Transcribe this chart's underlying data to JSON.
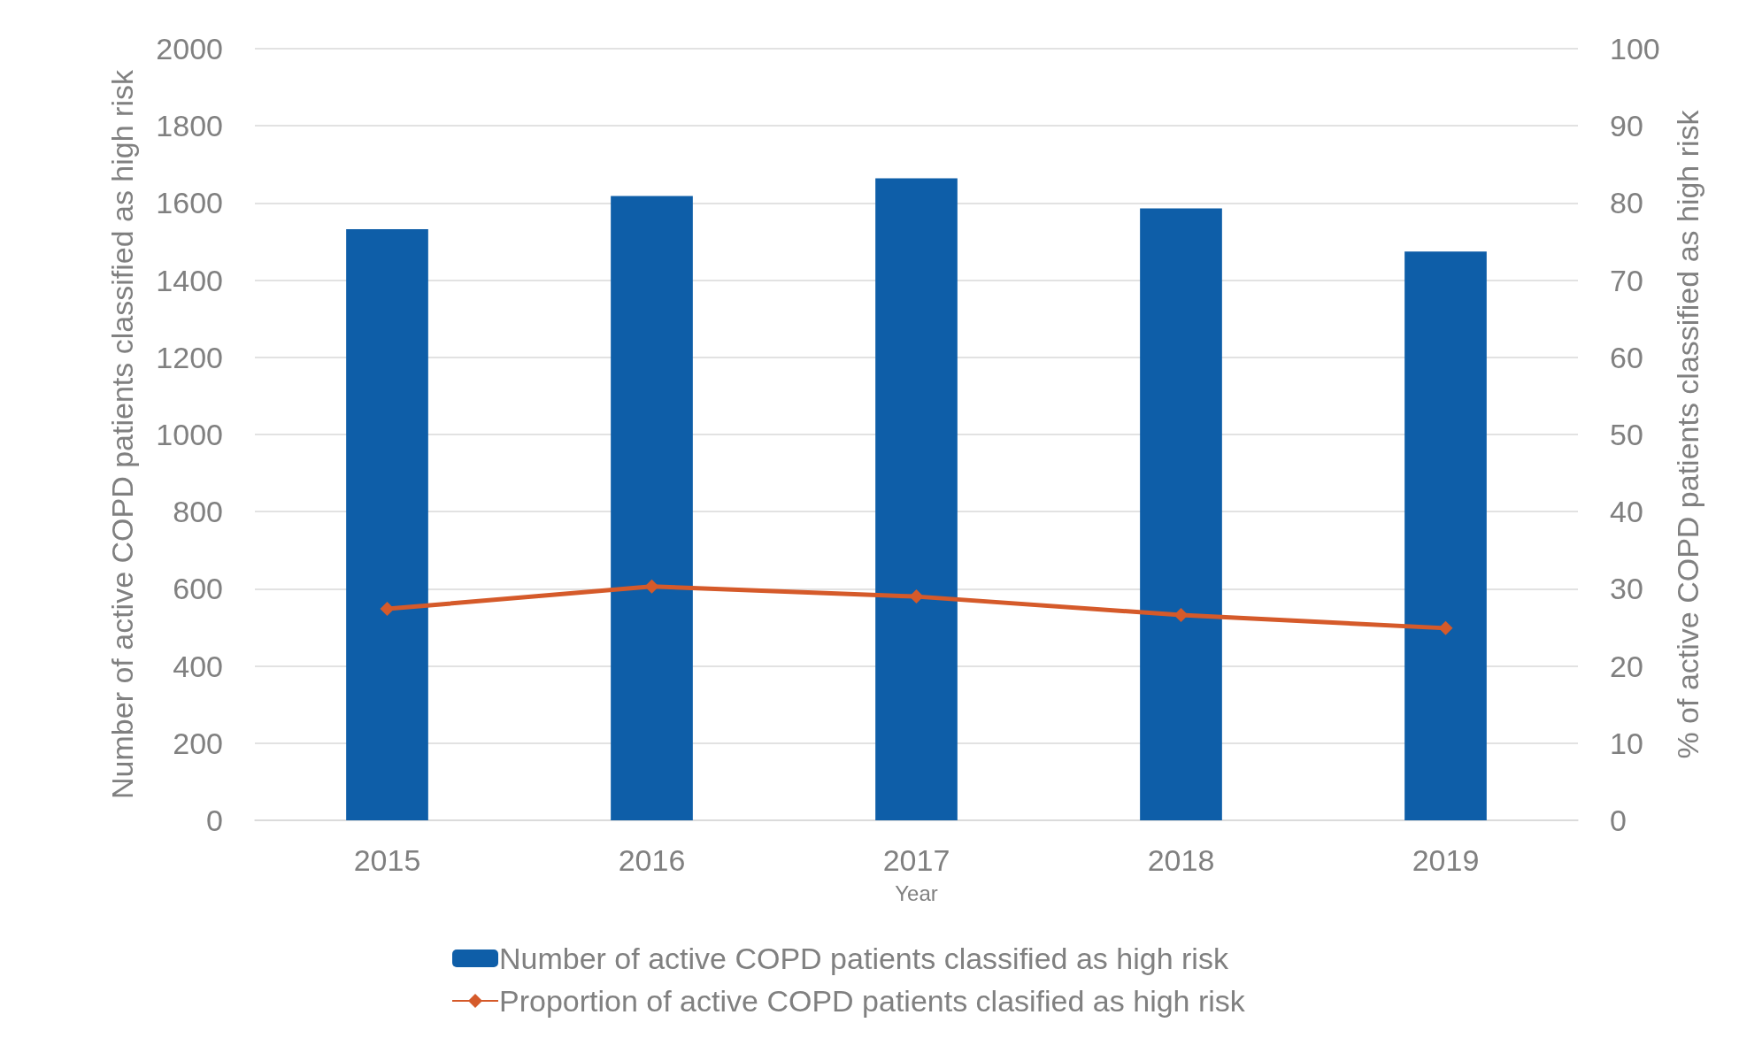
{
  "chart_data": {
    "type": "bar",
    "xlabel": "Year",
    "ylabel": "Number of active COPD patients classified as high risk",
    "y2label": "% of active COPD patients classified as high risk",
    "categories": [
      "2015",
      "2016",
      "2017",
      "2018",
      "2019"
    ],
    "series": [
      {
        "name": "Number of active COPD patients classified as high risk",
        "color": "#0e5ea8",
        "values": [
          1532,
          1618,
          1664,
          1586,
          1474
        ]
      },
      {
        "name": "Proportion of active COPD patients clasified as high risk",
        "type": "line",
        "axis": "y2",
        "color": "#d55a2a",
        "marker": "diamond",
        "values": [
          27.4,
          30.3,
          29.0,
          26.6,
          24.9
        ]
      }
    ],
    "ylim": [
      0,
      2000
    ],
    "yticks": [
      0,
      200,
      400,
      600,
      800,
      1000,
      1200,
      1400,
      1600,
      1800,
      2000
    ],
    "y2lim": [
      0,
      100
    ],
    "y2ticks": [
      0,
      10,
      20,
      30,
      40,
      50,
      60,
      70,
      80,
      90,
      100
    ],
    "grid": "y",
    "legend": "bottom"
  }
}
